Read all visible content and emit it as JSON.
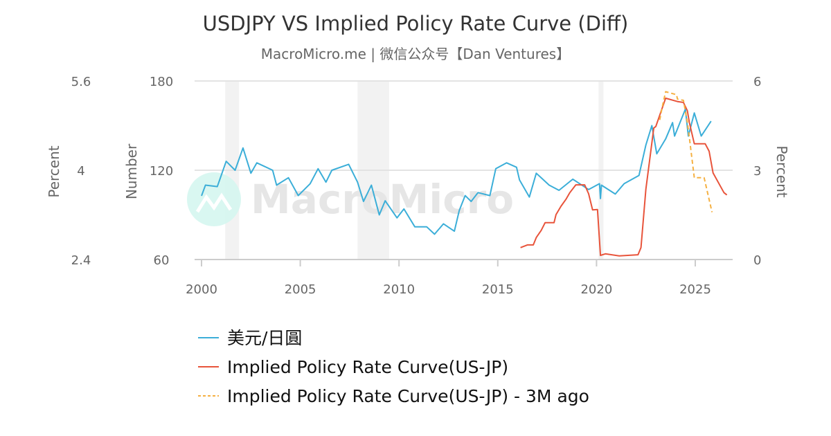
{
  "chart_data": {
    "type": "line",
    "title": "USDJPY VS Implied Policy Rate Curve (Diff)",
    "subtitle": "MacroMicro.me | 微信公众号【Dan Ventures】",
    "watermark": "MacroMicro",
    "grid": true,
    "legend_placement": "bottom",
    "xaxis": {
      "range": [
        2000,
        2026.8
      ],
      "ticks": [
        "2000",
        "2005",
        "2010",
        "2015",
        "2020",
        "2025"
      ]
    },
    "yaxes": [
      {
        "title": "Percent",
        "side": "far-left",
        "range": [
          2.4,
          5.6
        ],
        "ticks": [
          "2.4",
          "4",
          "5.6"
        ]
      },
      {
        "title": "Number",
        "side": "left",
        "range": [
          60,
          180
        ],
        "ticks": [
          "60",
          "120",
          "180"
        ]
      },
      {
        "title": "Percent",
        "side": "right",
        "range": [
          0,
          6
        ],
        "ticks": [
          "0",
          "3",
          "6"
        ]
      }
    ],
    "recession_bands": [
      [
        2001.2,
        2001.9
      ],
      [
        2007.9,
        2009.5
      ],
      [
        2020.1,
        2020.35
      ]
    ],
    "series": [
      {
        "name": "美元/日圓",
        "axis": "left",
        "color": "#3baed8",
        "dash": false,
        "points": [
          [
            2000.0,
            102.8
          ],
          [
            2000.2,
            110
          ],
          [
            2000.8,
            109
          ],
          [
            2001.25,
            126
          ],
          [
            2001.7,
            120
          ],
          [
            2002.1,
            135
          ],
          [
            2002.5,
            118
          ],
          [
            2002.8,
            125
          ],
          [
            2003.6,
            120
          ],
          [
            2003.8,
            110
          ],
          [
            2004.4,
            115
          ],
          [
            2004.9,
            103
          ],
          [
            2005.5,
            111
          ],
          [
            2005.9,
            121
          ],
          [
            2006.3,
            112
          ],
          [
            2006.6,
            120
          ],
          [
            2007.45,
            124
          ],
          [
            2007.9,
            112
          ],
          [
            2008.2,
            99
          ],
          [
            2008.6,
            110
          ],
          [
            2009.0,
            90
          ],
          [
            2009.3,
            99.5
          ],
          [
            2009.9,
            88
          ],
          [
            2010.25,
            94
          ],
          [
            2010.8,
            82
          ],
          [
            2011.4,
            82
          ],
          [
            2011.8,
            77
          ],
          [
            2012.25,
            84
          ],
          [
            2012.8,
            79
          ],
          [
            2013.05,
            93
          ],
          [
            2013.35,
            103
          ],
          [
            2013.65,
            99
          ],
          [
            2014.0,
            105
          ],
          [
            2014.6,
            103
          ],
          [
            2014.9,
            121
          ],
          [
            2015.45,
            125
          ],
          [
            2015.95,
            122
          ],
          [
            2016.1,
            113.5
          ],
          [
            2016.6,
            102
          ],
          [
            2016.95,
            118
          ],
          [
            2017.6,
            110
          ],
          [
            2018.1,
            106.5
          ],
          [
            2018.8,
            114
          ],
          [
            2019.6,
            107
          ],
          [
            2020.15,
            111
          ],
          [
            2020.2,
            101
          ],
          [
            2020.25,
            110
          ],
          [
            2020.95,
            104
          ],
          [
            2021.4,
            111
          ],
          [
            2022.15,
            116.5
          ],
          [
            2022.5,
            137
          ],
          [
            2022.8,
            150
          ],
          [
            2023.05,
            131
          ],
          [
            2023.5,
            141
          ],
          [
            2023.85,
            152
          ],
          [
            2023.95,
            143
          ],
          [
            2024.5,
            161
          ],
          [
            2024.65,
            143
          ],
          [
            2024.95,
            158.5
          ],
          [
            2025.3,
            143
          ],
          [
            2025.8,
            153
          ]
        ]
      },
      {
        "name": "Implied Policy Rate Curve(US-JP)",
        "axis": "right",
        "color": "#e8533a",
        "dash": false,
        "points": [
          [
            2016.15,
            0.4
          ],
          [
            2016.5,
            0.49
          ],
          [
            2016.8,
            0.49
          ],
          [
            2016.95,
            0.74
          ],
          [
            2017.2,
            0.98
          ],
          [
            2017.4,
            1.24
          ],
          [
            2017.85,
            1.24
          ],
          [
            2017.95,
            1.51
          ],
          [
            2018.2,
            1.79
          ],
          [
            2018.45,
            2.02
          ],
          [
            2018.65,
            2.25
          ],
          [
            2018.95,
            2.51
          ],
          [
            2019.4,
            2.51
          ],
          [
            2019.6,
            2.21
          ],
          [
            2019.8,
            1.67
          ],
          [
            2020.05,
            1.68
          ],
          [
            2020.2,
            0.14
          ],
          [
            2020.45,
            0.19
          ],
          [
            2021.15,
            0.12
          ],
          [
            2022.1,
            0.16
          ],
          [
            2022.25,
            0.4
          ],
          [
            2022.5,
            2.37
          ],
          [
            2022.65,
            3.14
          ],
          [
            2022.9,
            4.42
          ],
          [
            2023.0,
            4.47
          ],
          [
            2023.5,
            5.42
          ],
          [
            2024.1,
            5.31
          ],
          [
            2024.4,
            5.28
          ],
          [
            2024.6,
            5.0
          ],
          [
            2024.7,
            4.61
          ],
          [
            2024.95,
            3.89
          ],
          [
            2025.5,
            3.89
          ],
          [
            2025.7,
            3.64
          ],
          [
            2025.9,
            2.91
          ],
          [
            2026.45,
            2.25
          ],
          [
            2026.6,
            2.17
          ]
        ]
      },
      {
        "name": "Implied Policy Rate Curve(US-JP) - 3M ago",
        "axis": "right",
        "color": "#f5b041",
        "dash": true,
        "points": [
          [
            2023.2,
            4.69
          ],
          [
            2023.35,
            5.19
          ],
          [
            2023.5,
            5.64
          ],
          [
            2024.05,
            5.54
          ],
          [
            2024.1,
            5.39
          ],
          [
            2024.4,
            5.35
          ],
          [
            2024.6,
            4.61
          ],
          [
            2024.7,
            4.11
          ],
          [
            2024.95,
            2.75
          ],
          [
            2025.45,
            2.75
          ],
          [
            2025.85,
            1.59
          ]
        ]
      }
    ]
  }
}
